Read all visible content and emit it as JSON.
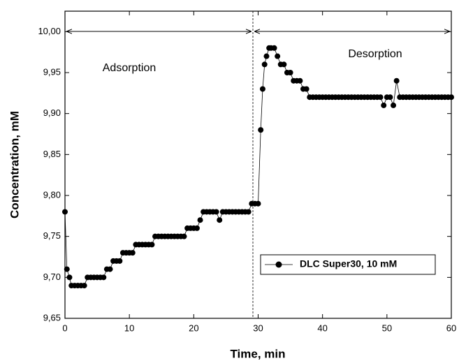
{
  "chart_data": {
    "type": "line",
    "x_label": "Time, min",
    "y_label": "Concentration, mM",
    "annotations": [
      "Adsorption",
      "Desorption"
    ],
    "xlim": [
      0,
      60
    ],
    "xticks": [
      0,
      10,
      20,
      30,
      40,
      50,
      60
    ],
    "ylim": [
      9.65,
      10.025
    ],
    "yticks": [
      {
        "value": 9.65,
        "label": "9,65"
      },
      {
        "value": 9.7,
        "label": "9,70"
      },
      {
        "value": 9.75,
        "label": "9,75"
      },
      {
        "value": 9.8,
        "label": "9,80"
      },
      {
        "value": 9.85,
        "label": "9,85"
      },
      {
        "value": 9.9,
        "label": "9,90"
      },
      {
        "value": 9.95,
        "label": "9,95"
      },
      {
        "value": 10.0,
        "label": "10,00"
      }
    ],
    "legend": "lower right",
    "x": [
      0,
      0.3,
      0.7,
      1,
      1.5,
      2,
      2.5,
      3,
      3.5,
      4,
      4.5,
      5,
      5.5,
      6,
      6.5,
      7,
      7.5,
      8,
      8.5,
      9,
      9.5,
      10,
      10.5,
      11,
      11.5,
      12,
      12.5,
      13,
      13.5,
      14,
      14.5,
      15,
      15.5,
      16,
      16.5,
      17,
      17.5,
      18,
      18.5,
      19,
      19.5,
      20,
      20.5,
      21,
      21.5,
      22,
      22.5,
      23,
      23.5,
      24,
      24.5,
      25,
      25.5,
      26,
      26.5,
      27,
      27.5,
      28,
      28.5,
      29,
      29.5,
      30,
      30.4,
      30.7,
      31,
      31.3,
      31.7,
      32,
      32.5,
      33,
      33.5,
      34,
      34.5,
      35,
      35.5,
      36,
      36.5,
      37,
      37.5,
      38,
      38.5,
      39,
      39.5,
      40,
      40.5,
      41,
      41.5,
      42,
      42.5,
      43,
      43.5,
      44,
      44.5,
      45,
      45.5,
      46,
      46.5,
      47,
      47.5,
      48,
      48.5,
      49,
      49.5,
      50,
      50.5,
      51,
      51.5,
      52,
      52.5,
      53,
      53.5,
      54,
      54.5,
      55,
      55.5,
      56,
      56.5,
      57,
      57.5,
      58,
      58.5,
      59,
      59.5,
      60
    ],
    "series": [
      {
        "name": "DLC Super30, 10 mM",
        "color": "#000000",
        "values": [
          9.78,
          9.71,
          9.7,
          9.69,
          9.69,
          9.69,
          9.69,
          9.69,
          9.7,
          9.7,
          9.7,
          9.7,
          9.7,
          9.7,
          9.71,
          9.71,
          9.72,
          9.72,
          9.72,
          9.73,
          9.73,
          9.73,
          9.73,
          9.74,
          9.74,
          9.74,
          9.74,
          9.74,
          9.74,
          9.75,
          9.75,
          9.75,
          9.75,
          9.75,
          9.75,
          9.75,
          9.75,
          9.75,
          9.75,
          9.76,
          9.76,
          9.76,
          9.76,
          9.77,
          9.78,
          9.78,
          9.78,
          9.78,
          9.78,
          9.77,
          9.78,
          9.78,
          9.78,
          9.78,
          9.78,
          9.78,
          9.78,
          9.78,
          9.78,
          9.79,
          9.79,
          9.79,
          9.88,
          9.93,
          9.96,
          9.97,
          9.98,
          9.98,
          9.98,
          9.97,
          9.96,
          9.96,
          9.95,
          9.95,
          9.94,
          9.94,
          9.94,
          9.93,
          9.93,
          9.92,
          9.92,
          9.92,
          9.92,
          9.92,
          9.92,
          9.92,
          9.92,
          9.92,
          9.92,
          9.92,
          9.92,
          9.92,
          9.92,
          9.92,
          9.92,
          9.92,
          9.92,
          9.92,
          9.92,
          9.92,
          9.92,
          9.92,
          9.91,
          9.92,
          9.92,
          9.91,
          9.94,
          9.92,
          9.92,
          9.92,
          9.92,
          9.92,
          9.92,
          9.92,
          9.92,
          9.92,
          9.92,
          9.92,
          9.92,
          9.92,
          9.92,
          9.92,
          9.92,
          9.92
        ]
      }
    ]
  }
}
